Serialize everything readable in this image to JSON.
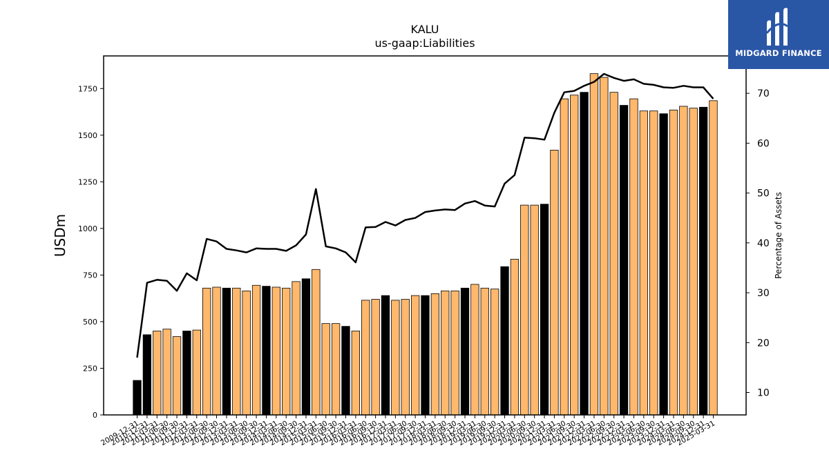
{
  "brand": {
    "name": "MIDGARD FINANCE",
    "background": "#2a56a6"
  },
  "chart_data": {
    "type": "bar",
    "title": "KALU",
    "subtitle": "us-gaap:Liabilities",
    "ylabel": "USDm",
    "y2label": "Percentage of Assets",
    "ylim": [
      0,
      1925
    ],
    "y2lim": [
      5.5,
      77.5
    ],
    "yticks": [
      0,
      250,
      500,
      750,
      1000,
      1250,
      1500,
      1750
    ],
    "y2ticks": [
      10,
      20,
      30,
      40,
      50,
      60,
      70
    ],
    "colors": {
      "annual": "#000000",
      "quarterly": "#ffb86c",
      "line": "#000000"
    },
    "categories": [
      "2009-12-31",
      "2010-12-31",
      "2011-03-31",
      "2011-06-30",
      "2011-09-30",
      "2011-12-31",
      "2012-03-31",
      "2012-06-30",
      "2012-09-30",
      "2012-12-31",
      "2013-03-31",
      "2013-06-30",
      "2013-09-30",
      "2013-12-31",
      "2014-03-31",
      "2014-06-30",
      "2014-09-30",
      "2014-12-31",
      "2015-03-31",
      "2015-06-30",
      "2015-09-30",
      "2015-12-31",
      "2016-03-31",
      "2016-06-30",
      "2016-09-30",
      "2016-12-31",
      "2017-03-31",
      "2017-06-30",
      "2017-09-30",
      "2017-12-31",
      "2018-03-31",
      "2018-06-30",
      "2018-09-30",
      "2018-12-31",
      "2019-03-31",
      "2019-06-30",
      "2019-09-30",
      "2019-12-31",
      "2020-03-31",
      "2020-06-30",
      "2020-09-30",
      "2020-12-31",
      "2021-03-31",
      "2021-06-30",
      "2021-09-30",
      "2021-12-31",
      "2022-03-31",
      "2022-06-30",
      "2022-09-30",
      "2022-12-31",
      "2023-03-31",
      "2023-06-30",
      "2023-09-30",
      "2023-12-31",
      "2024-03-31",
      "2024-06-30",
      "2024-09-30",
      "2024-12-31",
      "2025-03-31"
    ],
    "series": [
      {
        "type": "bar",
        "values": [
          185,
          430,
          450,
          460,
          420,
          450,
          455,
          680,
          685,
          680,
          680,
          665,
          695,
          690,
          685,
          680,
          715,
          730,
          780,
          490,
          490,
          475,
          450,
          615,
          620,
          640,
          615,
          620,
          640,
          640,
          650,
          665,
          665,
          680,
          700,
          680,
          675,
          795,
          835,
          1125,
          1125,
          1130,
          1420,
          1695,
          1715,
          1730,
          1830,
          1810,
          1730,
          1660,
          1695,
          1630,
          1630,
          1615,
          1635,
          1655,
          1645,
          1650,
          1685
        ],
        "annual": [
          true,
          true,
          false,
          false,
          false,
          true,
          false,
          false,
          false,
          true,
          false,
          false,
          false,
          true,
          false,
          false,
          false,
          true,
          false,
          false,
          false,
          true,
          false,
          false,
          false,
          true,
          false,
          false,
          false,
          true,
          false,
          false,
          false,
          true,
          false,
          false,
          false,
          true,
          false,
          false,
          false,
          true,
          false,
          false,
          false,
          true,
          false,
          false,
          false,
          true,
          false,
          false,
          false,
          true,
          false,
          false,
          false,
          true,
          false
        ]
      },
      {
        "type": "line",
        "axis": "right",
        "values": [
          17.0,
          32.0,
          32.6,
          32.4,
          30.4,
          33.9,
          32.5,
          40.8,
          40.3,
          38.8,
          38.5,
          38.1,
          38.9,
          38.8,
          38.8,
          38.4,
          39.5,
          41.7,
          50.8,
          39.3,
          38.9,
          38.1,
          36.1,
          43.1,
          43.2,
          44.2,
          43.5,
          44.6,
          45.0,
          46.2,
          46.5,
          46.7,
          46.6,
          47.9,
          48.4,
          47.5,
          47.3,
          51.9,
          53.6,
          61.1,
          61.0,
          60.7,
          66.1,
          70.2,
          70.5,
          71.5,
          72.3,
          73.9,
          73.1,
          72.5,
          72.8,
          71.9,
          71.7,
          71.2,
          71.1,
          71.5,
          71.2,
          71.2,
          68.9
        ]
      }
    ]
  }
}
